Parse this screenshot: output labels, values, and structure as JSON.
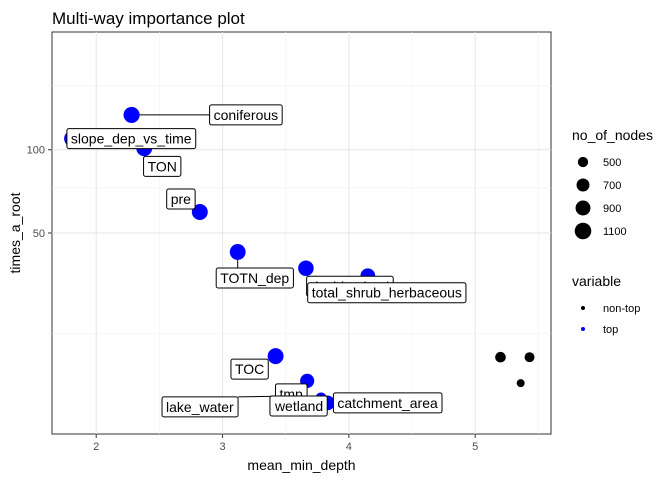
{
  "chart_data": {
    "type": "scatter",
    "title": "Multi-way importance plot",
    "xlabel": "mean_min_depth",
    "ylabel": "times_a_root",
    "xlim": [
      1.65,
      5.6
    ],
    "ylim": [
      0,
      200
    ],
    "x_ticks": [
      2,
      3,
      4,
      5
    ],
    "y_ticks": [
      50,
      100
    ],
    "y_scale": "sqrt",
    "grid": true,
    "legend_position": "right",
    "size_legend": {
      "title": "no_of_nodes",
      "entries": [
        500,
        700,
        900,
        1100
      ]
    },
    "color_legend": {
      "title": "variable",
      "entries": [
        {
          "label": "non-top",
          "color": "#000000"
        },
        {
          "label": "top",
          "color": "#0000ff"
        }
      ]
    },
    "points": [
      {
        "label": "coniferous",
        "x": 2.28,
        "y": 126,
        "nodes": 1040,
        "variable": "top"
      },
      {
        "label": "slope_dep_vs_time",
        "x": 1.81,
        "y": 108,
        "nodes": 1050,
        "variable": "top"
      },
      {
        "label": "TON",
        "x": 2.38,
        "y": 101,
        "nodes": 1000,
        "variable": "top"
      },
      {
        "label": "pre",
        "x": 2.82,
        "y": 61,
        "nodes": 1020,
        "variable": "top"
      },
      {
        "label": "TOTN_dep",
        "x": 3.12,
        "y": 41,
        "nodes": 1010,
        "variable": "top"
      },
      {
        "label": "decid_mixed",
        "x": 3.66,
        "y": 34,
        "nodes": 970,
        "variable": "top"
      },
      {
        "label": "total_shrub_herbaceous",
        "x": 4.15,
        "y": 31,
        "nodes": 880,
        "variable": "top"
      },
      {
        "label": "TOC",
        "x": 3.42,
        "y": 7.5,
        "nodes": 1020,
        "variable": "top"
      },
      {
        "label": "tmp",
        "x": 3.67,
        "y": 3.5,
        "nodes": 820,
        "variable": "top"
      },
      {
        "label": "lake_water",
        "x": 3.62,
        "y": 1.8,
        "nodes": 540,
        "variable": "top"
      },
      {
        "label": "wetland",
        "x": 3.78,
        "y": 1.6,
        "nodes": 560,
        "variable": "top"
      },
      {
        "label": "catchment_area",
        "x": 3.83,
        "y": 1.2,
        "nodes": 880,
        "variable": "top"
      },
      {
        "label": "",
        "x": 5.2,
        "y": 7.3,
        "nodes": 520,
        "variable": "non-top"
      },
      {
        "label": "",
        "x": 5.43,
        "y": 7.3,
        "nodes": 480,
        "variable": "non-top"
      },
      {
        "label": "",
        "x": 5.36,
        "y": 3.2,
        "nodes": 380,
        "variable": "non-top"
      }
    ]
  }
}
